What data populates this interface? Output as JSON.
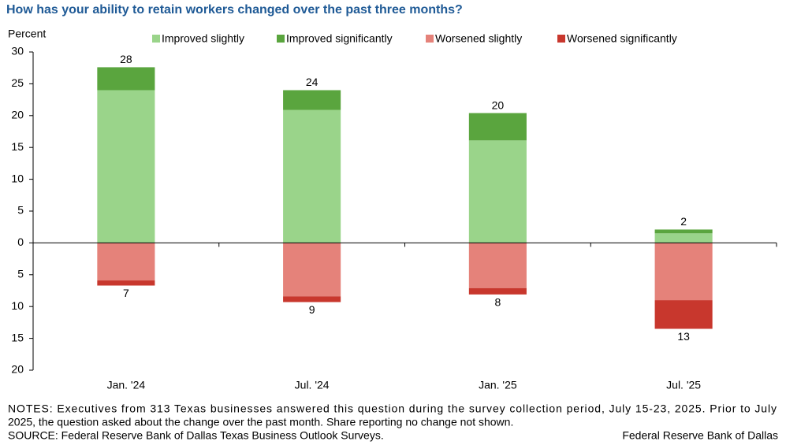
{
  "chart_data": {
    "type": "bar",
    "title": "How has your ability to retain workers changed over the past three months?",
    "y_axis_label": "Percent",
    "categories": [
      "Jan. '24",
      "Jul. '24",
      "Jan. '25",
      "Jul. '25"
    ],
    "series": [
      {
        "name": "Improved slightly",
        "color": "#9ad48a",
        "values": [
          24.0,
          20.9,
          16.1,
          1.5
        ]
      },
      {
        "name": "Improved significantly",
        "color": "#5aa53e",
        "values": [
          3.6,
          3.1,
          4.3,
          0.6
        ]
      },
      {
        "name": "Worsened slightly",
        "color": "#e5827a",
        "values": [
          -5.9,
          -8.4,
          -7.1,
          -9.0
        ]
      },
      {
        "name": "Worsened significantly",
        "color": "#c8372d",
        "values": [
          -0.8,
          -0.9,
          -1.0,
          -4.5
        ]
      }
    ],
    "positive_totals": [
      28,
      24,
      20,
      2
    ],
    "negative_totals": [
      7,
      9,
      8,
      13
    ],
    "ylim": [
      -20,
      30
    ],
    "yticks": [
      30,
      25,
      20,
      15,
      10,
      5,
      0,
      {
        "value": -5,
        "label": "5"
      },
      {
        "value": -10,
        "label": "10"
      },
      {
        "value": -15,
        "label": "15"
      },
      {
        "value": -20,
        "label": "20"
      }
    ],
    "stacked": true,
    "notes": [
      "NOTES: Executives from 313 Texas businesses answered this question during the survey collection period, July 15-23, 2025. Prior to July",
      "2025, the question asked about the change over the past month. Share reporting no change not shown.",
      "SOURCE: Federal Reserve Bank of Dallas Texas Business Outlook Surveys."
    ],
    "credit": "Federal Reserve Bank of Dallas"
  }
}
